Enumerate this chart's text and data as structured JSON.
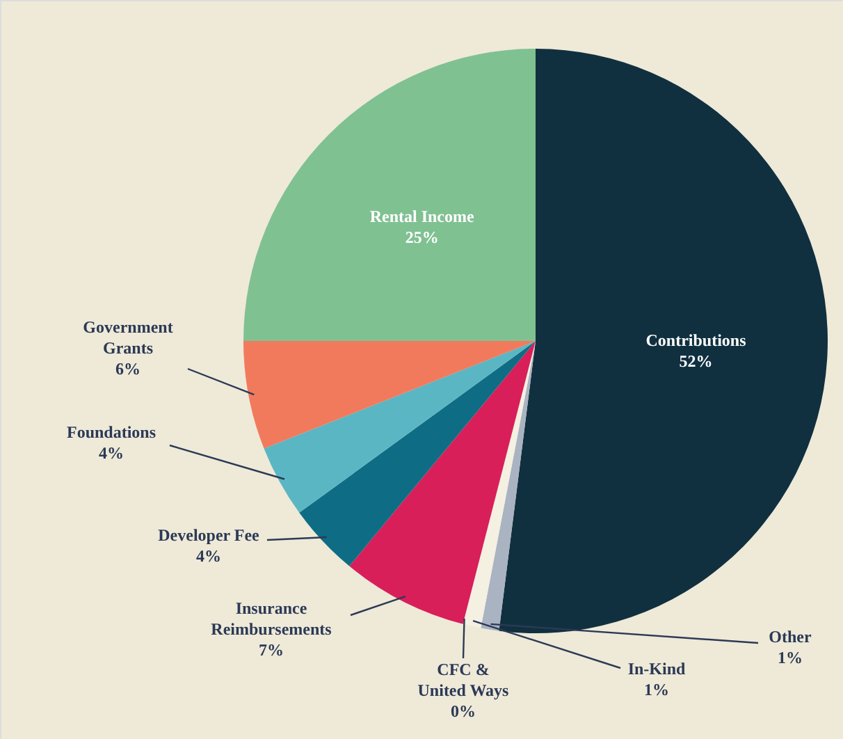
{
  "chart_data": {
    "type": "pie",
    "categories": [
      "Contributions",
      "Other",
      "In-Kind",
      "CFC & United Ways",
      "Insurance Reimbursements",
      "Developer Fee",
      "Foundations",
      "Government Grants",
      "Rental Income"
    ],
    "values": [
      52,
      1,
      1,
      0,
      7,
      4,
      4,
      6,
      25
    ],
    "value_labels": [
      "52%",
      "1%",
      "1%",
      "0%",
      "7%",
      "4%",
      "4%",
      "6%",
      "25%"
    ],
    "colors": [
      "#10303f",
      "#a9b3c2",
      "#f4f0e2",
      "#e8d9a8",
      "#d81f5a",
      "#0e6d85",
      "#5bb6c4",
      "#f27a5c",
      "#80c192"
    ]
  }
}
